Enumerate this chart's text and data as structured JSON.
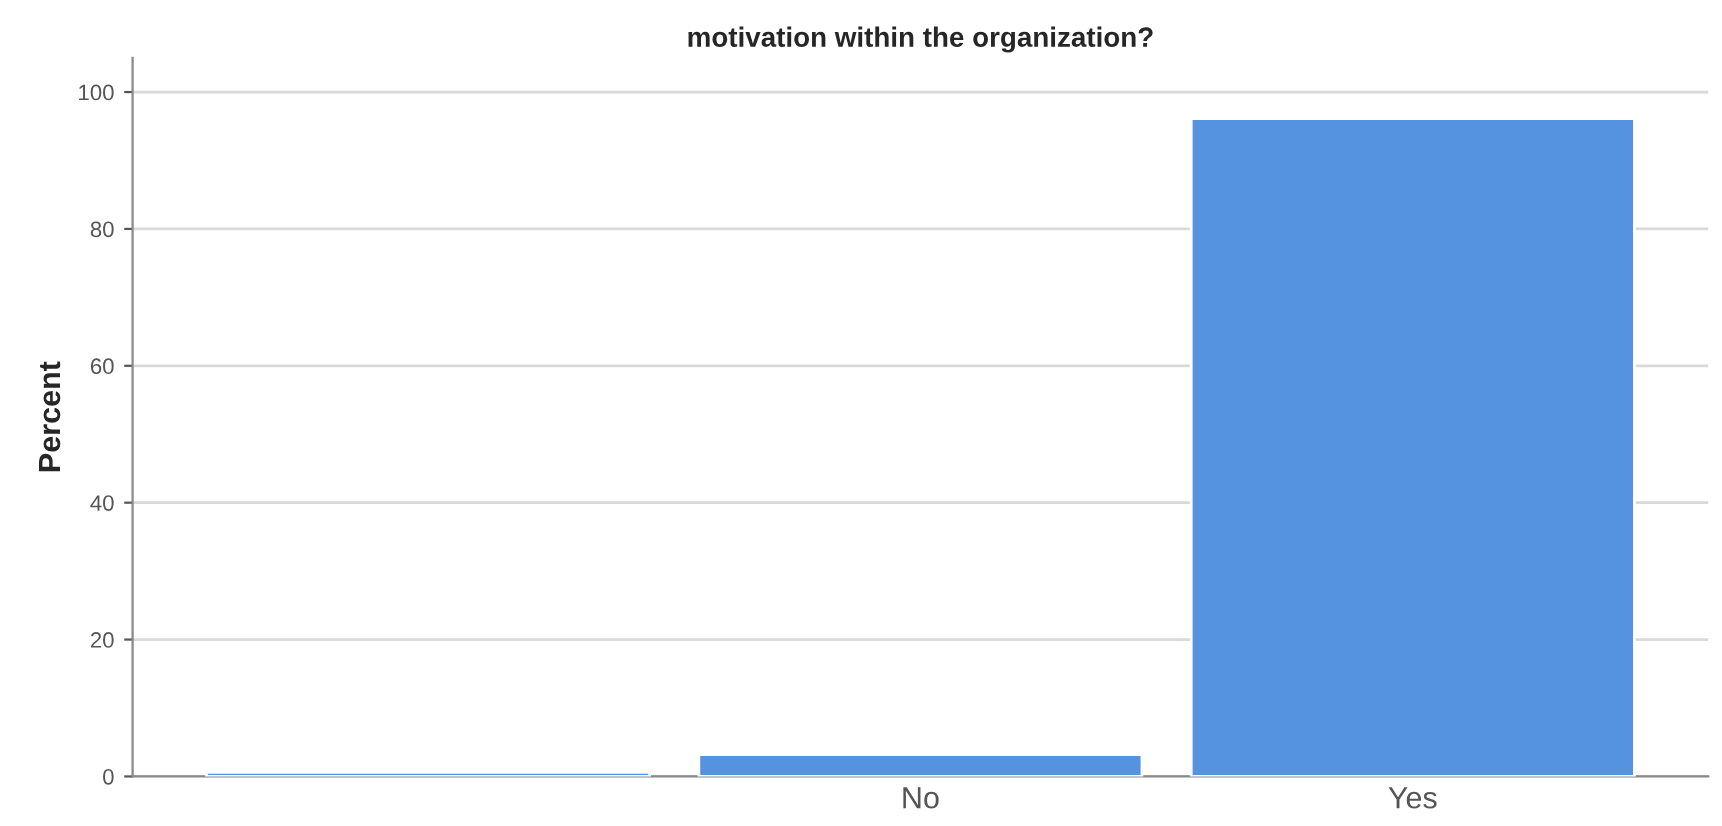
{
  "chart_data": {
    "type": "bar",
    "title": "motivation within the organization?",
    "ylabel": "Percent",
    "categories": [
      null,
      "No",
      "Yes"
    ],
    "values": [
      0.6,
      3.2,
      96.1
    ],
    "color": "#5592e0",
    "ylim": [
      0,
      105
    ],
    "yticks": [
      0,
      20,
      40,
      60,
      80,
      100
    ],
    "grid": "y"
  }
}
